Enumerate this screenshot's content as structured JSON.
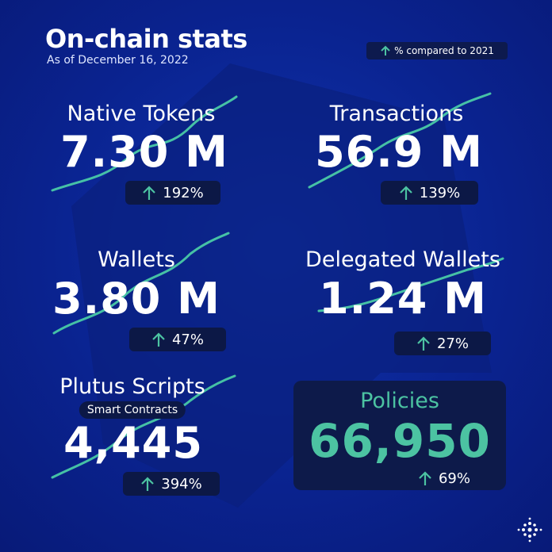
{
  "header": {
    "title": "On-chain stats",
    "subtitle": "As of December 16, 2022",
    "legend": "% compared to 2021"
  },
  "stats": [
    {
      "label": "Native Tokens",
      "value": "7.30 M",
      "change": "192%"
    },
    {
      "label": "Transactions",
      "value": "56.9 M",
      "change": "139%"
    },
    {
      "label": "Wallets",
      "value": "3.80 M",
      "change": "47%"
    },
    {
      "label": "Delegated Wallets",
      "value": "1.24 M",
      "change": "27%"
    },
    {
      "label": "Plutus Scripts",
      "sublabel": "Smart Contracts",
      "value": "4,445",
      "change": "394%"
    },
    {
      "label": "Policies",
      "value": "66,950",
      "change": "69%"
    }
  ]
}
